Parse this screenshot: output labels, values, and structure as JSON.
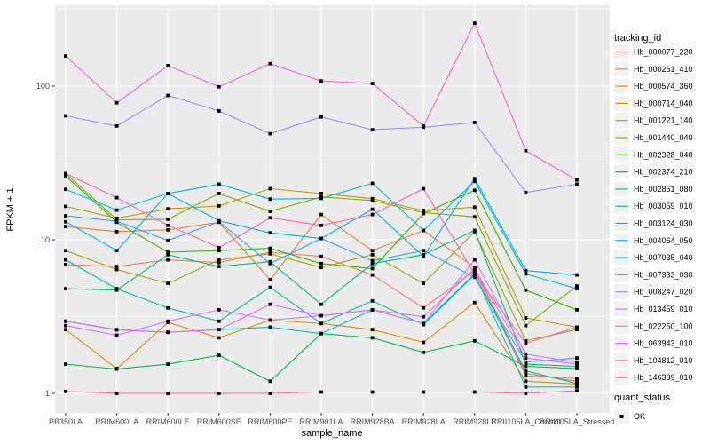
{
  "figure": {
    "background": "#FFFFFF",
    "panel_background": "#EBEBEB",
    "grid_color": "#FFFFFF",
    "tick_color": "#333333",
    "tick_label_color": "#4D4D4D"
  },
  "chart_data": {
    "type": "line",
    "title": "",
    "xlabel": "sample_name",
    "ylabel": "FPKM + 1",
    "y_scale": "log10",
    "y_ticks": [
      1,
      10,
      100
    ],
    "y_tick_labels": [
      "1",
      "10",
      "100"
    ],
    "y_minor_ticks": [
      3.162,
      31.62,
      316.2
    ],
    "ylim": [
      0.76,
      330
    ],
    "grid": true,
    "legend_position": "right",
    "point_shape": "filled-square",
    "point_color": "#000000",
    "categories": [
      "PB350LA",
      "RRIM600LA",
      "RRIM600LE",
      "RRIM600SE",
      "RRIM600PE",
      "RRIM901LA",
      "RRIM928BA",
      "RRIM928LA",
      "RRIM928LE",
      "RRII105LA_Control",
      "RRII105LA_Stressed"
    ],
    "series": [
      {
        "name": "Hb_000077_220",
        "color": "#F8766D",
        "values": [
          6.9,
          6.7,
          7.4,
          7.1,
          8.3,
          7.8,
          5.9,
          3.6,
          6.3,
          1.3,
          1.25
        ]
      },
      {
        "name": "Hb_000261_410",
        "color": "#EA8331",
        "values": [
          12.2,
          11.3,
          11.6,
          13.0,
          5.5,
          14.6,
          8.5,
          11.5,
          6.6,
          1.35,
          1.2
        ]
      },
      {
        "name": "Hb_000574_360",
        "color": "#D89000",
        "values": [
          2.6,
          1.45,
          2.9,
          2.3,
          3.0,
          2.85,
          2.6,
          2.15,
          3.9,
          1.2,
          1.15
        ]
      },
      {
        "name": "Hb_000714_040",
        "color": "#C09B00",
        "values": [
          16.5,
          13.8,
          15.9,
          16.6,
          21.5,
          20.0,
          18.5,
          15.5,
          16.3,
          3.1,
          2.7
        ]
      },
      {
        "name": "Hb_001221_140",
        "color": "#A3A500",
        "values": [
          8.5,
          6.4,
          5.2,
          7.4,
          8.1,
          6.6,
          8.0,
          5.2,
          11.3,
          2.2,
          2.6
        ]
      },
      {
        "name": "Hb_001440_040",
        "color": "#7CAE00",
        "values": [
          27.0,
          13.5,
          13.6,
          20.0,
          15.3,
          19.0,
          18.0,
          15.0,
          14.1,
          2.76,
          5.0
        ]
      },
      {
        "name": "Hb_002328_040",
        "color": "#39B600",
        "values": [
          26.0,
          13.0,
          8.3,
          8.5,
          8.8,
          7.0,
          6.5,
          14.8,
          21.0,
          4.7,
          3.5
        ]
      },
      {
        "name": "Hb_002374_210",
        "color": "#00BB4E",
        "values": [
          1.55,
          1.44,
          1.55,
          1.77,
          1.2,
          2.45,
          2.3,
          1.85,
          2.2,
          1.5,
          1.45
        ]
      },
      {
        "name": "Hb_002851_080",
        "color": "#00BF7D",
        "values": [
          4.8,
          4.7,
          8.0,
          6.7,
          7.2,
          3.8,
          7.0,
          8.0,
          11.5,
          1.55,
          1.5
        ]
      },
      {
        "name": "Hb_003059_010",
        "color": "#00C1A3",
        "values": [
          7.4,
          4.8,
          3.6,
          2.95,
          4.9,
          2.85,
          4.0,
          2.8,
          5.9,
          1.4,
          1.16
        ]
      },
      {
        "name": "Hb_003124_030",
        "color": "#00BFC4",
        "values": [
          2.95,
          2.6,
          2.5,
          2.6,
          2.7,
          2.45,
          3.5,
          2.85,
          6.0,
          1.1,
          1.1
        ]
      },
      {
        "name": "Hb_004064_050",
        "color": "#00BAE0",
        "values": [
          21.3,
          15.6,
          20.0,
          23.0,
          18.4,
          18.6,
          23.3,
          11.5,
          24.0,
          6.0,
          4.8
        ]
      },
      {
        "name": "Hb_007035_040",
        "color": "#00B0F6",
        "values": [
          13.1,
          8.5,
          20.0,
          13.3,
          11.1,
          10.2,
          15.8,
          7.8,
          25.0,
          6.3,
          5.9
        ]
      },
      {
        "name": "Hb_007333_030",
        "color": "#35A2FF",
        "values": [
          14.3,
          13.2,
          9.9,
          13.1,
          7.0,
          10.2,
          7.3,
          8.5,
          5.7,
          1.6,
          1.7
        ]
      },
      {
        "name": "Hb_008247_020",
        "color": "#9590FF",
        "values": [
          64,
          55,
          87,
          69,
          49,
          63,
          52,
          54,
          58,
          20.3,
          23.0
        ]
      },
      {
        "name": "Hb_013459_010",
        "color": "#C77CFF",
        "values": [
          2.76,
          2.39,
          2.95,
          3.5,
          3.0,
          3.2,
          3.5,
          2.85,
          7.4,
          1.8,
          1.6
        ]
      },
      {
        "name": "Hb_022250_100",
        "color": "#E76BF3",
        "values": [
          2.95,
          2.59,
          2.5,
          2.6,
          3.8,
          3.2,
          3.5,
          3.15,
          6.5,
          1.7,
          1.55
        ]
      },
      {
        "name": "Hb_063943_010",
        "color": "#FA62DB",
        "values": [
          157,
          78,
          136,
          99,
          140,
          108,
          104,
          55,
          257,
          38,
          24.5
        ]
      },
      {
        "name": "Hb_104812_010",
        "color": "#FF62BC",
        "values": [
          27.0,
          18.8,
          12.4,
          8.9,
          13.9,
          12.4,
          14.6,
          21.5,
          6.0,
          2.12,
          2.7
        ]
      },
      {
        "name": "Hb_146339_010",
        "color": "#FF6A98",
        "values": [
          1.03,
          1.0,
          1.0,
          1.0,
          1.0,
          1.02,
          1.02,
          1.02,
          1.02,
          1.0,
          1.04
        ]
      }
    ],
    "legend": {
      "tracking_id_title": "tracking_id",
      "quant_status_title": "quant_status",
      "quant_ok_label": "OK",
      "key_background": "#F2F2F2"
    }
  }
}
